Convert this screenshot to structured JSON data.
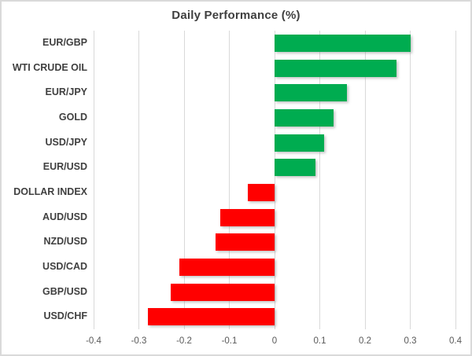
{
  "chart_data": {
    "type": "bar",
    "orientation": "horizontal",
    "title": "Daily Performance (%)",
    "categories": [
      "EUR/GBP",
      "WTI CRUDE OIL",
      "EUR/JPY",
      "GOLD",
      "USD/JPY",
      "EUR/USD",
      "DOLLAR INDEX",
      "AUD/USD",
      "NZD/USD",
      "USD/CAD",
      "GBP/USD",
      "USD/CHF"
    ],
    "values": [
      0.3,
      0.27,
      0.16,
      0.13,
      0.11,
      0.09,
      -0.06,
      -0.12,
      -0.13,
      -0.21,
      -0.23,
      -0.28
    ],
    "xlim": [
      -0.4,
      0.4
    ],
    "xtick_values": [
      -0.4,
      -0.3,
      -0.2,
      -0.1,
      0,
      0.1,
      0.2,
      0.3,
      0.4
    ],
    "xtick_labels": [
      "-0.4",
      "-0.3",
      "-0.2",
      "-0.1",
      "0",
      "0.1",
      "0.2",
      "0.3",
      "0.4"
    ],
    "grid": true,
    "legend": "none",
    "colors": {
      "positive": "#00ac50",
      "negative": "#ff0000",
      "gridline": "#d9d9d9",
      "title_text": "#3f3f3f",
      "category_text": "#404040",
      "tick_text": "#595959",
      "border": "#d9d9d9",
      "background": "#ffffff"
    }
  }
}
